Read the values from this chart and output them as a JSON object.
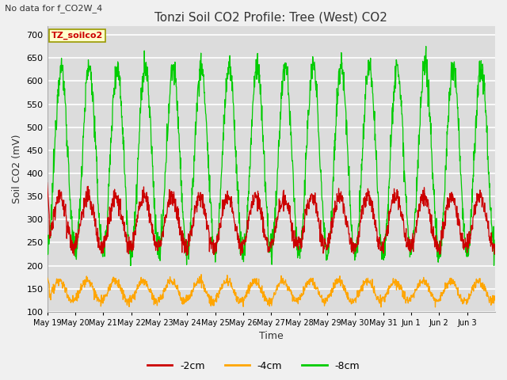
{
  "title": "Tonzi Soil CO2 Profile: Tree (West) CO2",
  "subtitle": "No data for f_CO2W_4",
  "ylabel": "Soil CO2 (mV)",
  "xlabel": "Time",
  "ylim": [
    100,
    720
  ],
  "yticks": [
    100,
    150,
    200,
    250,
    300,
    350,
    400,
    450,
    500,
    550,
    600,
    650,
    700
  ],
  "legend_label_box": "TZ_soilco2",
  "line_colors": {
    "-2cm": "#cc0000",
    "-4cm": "#ffa500",
    "-8cm": "#00cc00"
  },
  "fig_bg_color": "#f0f0f0",
  "plot_bg_color": "#dcdcdc",
  "grid_color": "#ffffff",
  "xtick_labels": [
    "May 19",
    "May 20",
    "May 21",
    "May 22",
    "May 23",
    "May 24",
    "May 25",
    "May 26",
    "May 27",
    "May 28",
    "May 29",
    "May 30",
    "May 31",
    "Jun 1",
    "Jun 2",
    "Jun 3"
  ]
}
